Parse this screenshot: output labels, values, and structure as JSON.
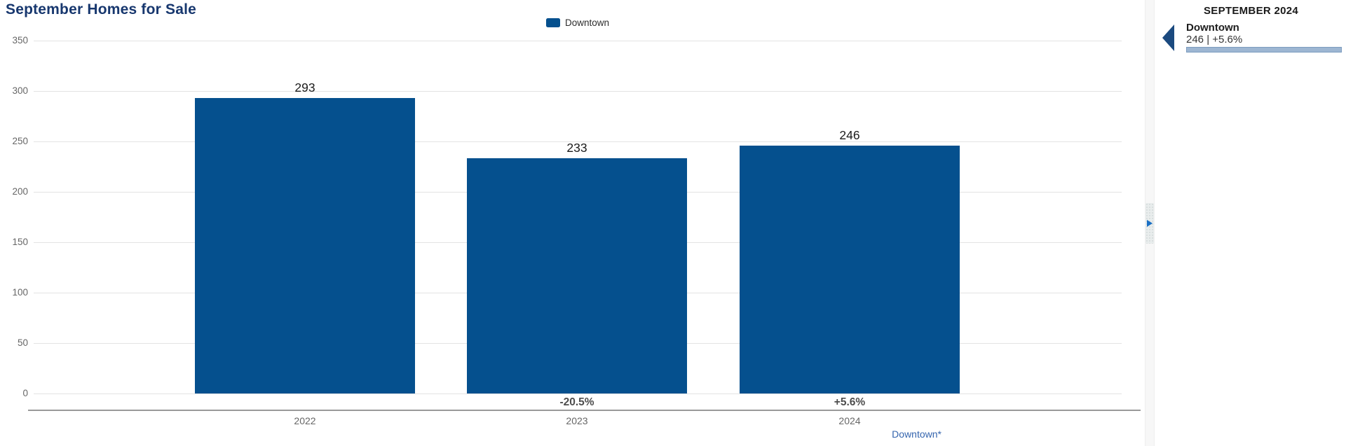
{
  "chart": {
    "title": "September Homes for Sale",
    "footnote": "Downtown*"
  },
  "chart_data": {
    "type": "bar",
    "title": "September Homes for Sale",
    "categories": [
      "2022",
      "2023",
      "2024"
    ],
    "series": [
      {
        "name": "Downtown",
        "color": "#05508e",
        "values": [
          293,
          233,
          246
        ]
      }
    ],
    "bar_value_labels": [
      "293",
      "233",
      "246"
    ],
    "pct_change_labels": [
      null,
      "-20.5%",
      "+5.6%"
    ],
    "xlabel": "",
    "ylabel": "",
    "ylim": [
      0,
      350
    ],
    "yticks": [
      0,
      50,
      100,
      150,
      200,
      250,
      300,
      350
    ],
    "grid": true,
    "legend_position": "top-center",
    "legend": [
      {
        "label": "Downtown",
        "color": "#05508e"
      }
    ]
  },
  "panel": {
    "title": "SEPTEMBER 2024",
    "entries": [
      {
        "name": "Downtown",
        "value_text": "246 | +5.6%",
        "bar_color": "#9db6d2",
        "pointer_color": "#1b4a7f"
      }
    ]
  },
  "gutter": {
    "expand_arrow": "right"
  },
  "colors": {
    "bar": "#05508e",
    "title": "#17376e",
    "gridline": "#e3e3e3",
    "axis_line": "#999999",
    "footnote_link": "#3565ae",
    "expand_arrow": "#1a6fc4"
  }
}
